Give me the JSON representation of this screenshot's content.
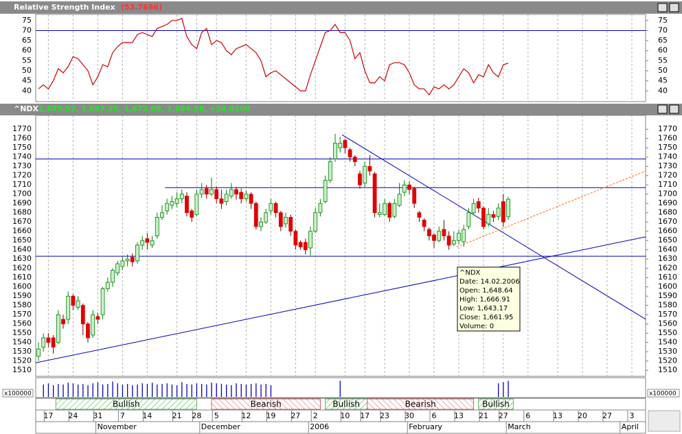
{
  "rsi_panel": {
    "title": "Relative Strength Index",
    "value_label": "(53.7686)"
  },
  "main_panel": {
    "title": "^NDX",
    "quote": "1,675.52, 1,697.25, 1,672.08, 1,694.58, +24.0100"
  },
  "volume_unit": "x100000",
  "tooltip": [
    "^NDX",
    "Date: 14.02.2006",
    "Open: 1,648.64",
    "High: 1,666.91",
    "Low: 1,643.17",
    "Close: 1,661.95",
    "Volume: 0"
  ],
  "chart_data": [
    {
      "type": "line",
      "name": "rsi",
      "color": "#d00000",
      "ylim": [
        35,
        78
      ],
      "yticks": [
        40,
        45,
        50,
        55,
        60,
        65,
        70,
        75
      ],
      "level": 70,
      "level_color": "#0000c0",
      "values": [
        41,
        43,
        41,
        45,
        51,
        49,
        52,
        57,
        56,
        53,
        50,
        43,
        47,
        53,
        52,
        59,
        62,
        64,
        64,
        64,
        68,
        69,
        68,
        67,
        71,
        72,
        73,
        75,
        75,
        76,
        67,
        63,
        61,
        69,
        71,
        63,
        65,
        64,
        60,
        58,
        61,
        62,
        63,
        61,
        59,
        55,
        47,
        49,
        50,
        48,
        46,
        44,
        42,
        40,
        40,
        48,
        55,
        62,
        69,
        70,
        73,
        69,
        69,
        65,
        56,
        59,
        50,
        44,
        44,
        47,
        45,
        53,
        54,
        54,
        53,
        49,
        43,
        41,
        41,
        38,
        42,
        41,
        43,
        41,
        43,
        47,
        51,
        49,
        44,
        48,
        47,
        53,
        49,
        47,
        53,
        53.7686,
        null,
        null,
        null,
        null,
        null,
        null,
        null,
        null,
        null,
        null,
        null,
        null,
        null,
        null,
        null,
        null,
        null,
        null,
        null,
        null,
        null,
        null,
        null,
        null,
        null,
        null,
        null
      ]
    },
    {
      "type": "candlestick",
      "name": "price",
      "up_color": "#c8f0c8",
      "up_edge": "#008000",
      "down_color": "#e00000",
      "ylim": [
        1503.5,
        1785
      ],
      "yticks": [
        1510,
        1520,
        1530,
        1540,
        1550,
        1560,
        1570,
        1580,
        1590,
        1600,
        1610,
        1620,
        1630,
        1640,
        1650,
        1660,
        1670,
        1680,
        1690,
        1700,
        1710,
        1720,
        1730,
        1740,
        1750,
        1760,
        1770
      ],
      "candles": [
        [
          1525,
          1540,
          1520,
          1533
        ],
        [
          1535,
          1550,
          1530,
          1545
        ],
        [
          1545,
          1550,
          1535,
          1540
        ],
        [
          1545,
          1548,
          1528,
          1535
        ],
        [
          1540,
          1575,
          1538,
          1570
        ],
        [
          1565,
          1570,
          1555,
          1560
        ],
        [
          1565,
          1595,
          1560,
          1590
        ],
        [
          1590,
          1592,
          1575,
          1580
        ],
        [
          1578,
          1590,
          1575,
          1585
        ],
        [
          1580,
          1582,
          1548,
          1560
        ],
        [
          1560,
          1562,
          1540,
          1545
        ],
        [
          1548,
          1575,
          1545,
          1570
        ],
        [
          1568,
          1572,
          1560,
          1565
        ],
        [
          1570,
          1600,
          1565,
          1598
        ],
        [
          1598,
          1610,
          1595,
          1605
        ],
        [
          1605,
          1620,
          1600,
          1618
        ],
        [
          1615,
          1628,
          1612,
          1625
        ],
        [
          1622,
          1632,
          1618,
          1628
        ],
        [
          1628,
          1635,
          1622,
          1630
        ],
        [
          1632,
          1636,
          1622,
          1627
        ],
        [
          1628,
          1648,
          1625,
          1645
        ],
        [
          1645,
          1655,
          1640,
          1650
        ],
        [
          1652,
          1658,
          1640,
          1648
        ],
        [
          1645,
          1655,
          1642,
          1650
        ],
        [
          1655,
          1680,
          1652,
          1675
        ],
        [
          1675,
          1688,
          1672,
          1680
        ],
        [
          1682,
          1695,
          1678,
          1690
        ],
        [
          1688,
          1698,
          1684,
          1692
        ],
        [
          1690,
          1702,
          1686,
          1695
        ],
        [
          1695,
          1705,
          1690,
          1700
        ],
        [
          1698,
          1702,
          1676,
          1680
        ],
        [
          1682,
          1684,
          1670,
          1675
        ],
        [
          1678,
          1705,
          1676,
          1700
        ],
        [
          1700,
          1712,
          1696,
          1705
        ],
        [
          1706,
          1710,
          1695,
          1700
        ],
        [
          1700,
          1718,
          1698,
          1705
        ],
        [
          1705,
          1708,
          1690,
          1695
        ],
        [
          1695,
          1705,
          1684,
          1690
        ],
        [
          1692,
          1705,
          1688,
          1700
        ],
        [
          1698,
          1712,
          1695,
          1705
        ],
        [
          1705,
          1708,
          1694,
          1700
        ],
        [
          1702,
          1706,
          1690,
          1695
        ],
        [
          1695,
          1704,
          1692,
          1700
        ],
        [
          1700,
          1702,
          1684,
          1690
        ],
        [
          1690,
          1692,
          1662,
          1665
        ],
        [
          1665,
          1675,
          1660,
          1670
        ],
        [
          1670,
          1684,
          1668,
          1680
        ],
        [
          1682,
          1695,
          1678,
          1690
        ],
        [
          1690,
          1692,
          1675,
          1680
        ],
        [
          1680,
          1682,
          1660,
          1665
        ],
        [
          1668,
          1680,
          1664,
          1675
        ],
        [
          1675,
          1678,
          1655,
          1660
        ],
        [
          1660,
          1662,
          1640,
          1645
        ],
        [
          1648,
          1650,
          1640,
          1643
        ],
        [
          1648,
          1652,
          1635,
          1640
        ],
        [
          1642,
          1665,
          1634,
          1660
        ],
        [
          1660,
          1685,
          1658,
          1680
        ],
        [
          1680,
          1695,
          1676,
          1690
        ],
        [
          1692,
          1720,
          1690,
          1715
        ],
        [
          1715,
          1740,
          1712,
          1735
        ],
        [
          1738,
          1765,
          1735,
          1755
        ],
        [
          1750,
          1762,
          1745,
          1755
        ],
        [
          1758,
          1760,
          1744,
          1750
        ],
        [
          1748,
          1750,
          1735,
          1740
        ],
        [
          1740,
          1742,
          1730,
          1735
        ],
        [
          1722,
          1725,
          1706,
          1710
        ],
        [
          1712,
          1735,
          1708,
          1730
        ],
        [
          1730,
          1742,
          1720,
          1725
        ],
        [
          1722,
          1724,
          1675,
          1680
        ],
        [
          1678,
          1690,
          1675,
          1680
        ],
        [
          1678,
          1695,
          1676,
          1690
        ],
        [
          1690,
          1692,
          1670,
          1675
        ],
        [
          1676,
          1695,
          1674,
          1690
        ],
        [
          1688,
          1712,
          1686,
          1700
        ],
        [
          1702,
          1715,
          1698,
          1710
        ],
        [
          1710,
          1714,
          1700,
          1705
        ],
        [
          1706,
          1708,
          1685,
          1690
        ],
        [
          1680,
          1682,
          1670,
          1675
        ],
        [
          1672,
          1674,
          1660,
          1665
        ],
        [
          1662,
          1664,
          1650,
          1655
        ],
        [
          1656,
          1658,
          1642,
          1650
        ],
        [
          1650,
          1665,
          1648,
          1660
        ],
        [
          1662,
          1672,
          1650,
          1655
        ],
        [
          1655,
          1660,
          1640,
          1645
        ],
        [
          1646,
          1660,
          1644,
          1650
        ],
        [
          1650,
          1662,
          1646,
          1658
        ],
        [
          1648.64,
          1666.91,
          1643.17,
          1661.95
        ],
        [
          1665,
          1685,
          1662,
          1680
        ],
        [
          1680,
          1695,
          1678,
          1690
        ],
        [
          1692,
          1696,
          1680,
          1685
        ],
        [
          1685,
          1687,
          1662,
          1665
        ],
        [
          1668,
          1685,
          1665,
          1678
        ],
        [
          1678,
          1682,
          1670,
          1675
        ],
        [
          1676,
          1690,
          1672,
          1685
        ],
        [
          1692,
          1700,
          1665,
          1670
        ],
        [
          1675.52,
          1697.25,
          1672.08,
          1694.58
        ],
        null,
        null,
        null,
        null,
        null,
        null,
        null,
        null,
        null,
        null,
        null,
        null,
        null,
        null,
        null,
        null,
        null,
        null,
        null,
        null,
        null,
        null,
        null,
        null,
        null,
        null,
        null
      ],
      "lines": [
        {
          "color": "#0000c0",
          "x": [
            -0.6,
            122.8
          ],
          "y": [
            1738,
            1738
          ]
        },
        {
          "color": "#0000c0",
          "x": [
            25.6,
            122.8
          ],
          "y": [
            1707,
            1707
          ]
        },
        {
          "color": "#0000c0",
          "x": [
            -0.6,
            122.8
          ],
          "y": [
            1633,
            1633
          ]
        },
        {
          "color": "#0000c0",
          "x": [
            -0.6,
            122.8
          ],
          "y": [
            1518,
            1654
          ]
        },
        {
          "color": "#0000c0",
          "x": [
            61.4,
            122.8
          ],
          "y": [
            1764,
            1565
          ]
        },
        {
          "color": "#ff6600",
          "dashed": true,
          "x": [
            84.6,
            122.8
          ],
          "y": [
            1643,
            1725
          ]
        }
      ]
    },
    {
      "type": "bar",
      "name": "volume",
      "color": "#0000c0",
      "ylim": [
        0,
        30
      ],
      "values": [
        0,
        20,
        22,
        19,
        21,
        20,
        23,
        22,
        20,
        21,
        19,
        22,
        24,
        20,
        21,
        25,
        22,
        20,
        21,
        19,
        20,
        22,
        21,
        23,
        20,
        21,
        22,
        20,
        19,
        24,
        21,
        20,
        22,
        21,
        20,
        23,
        22,
        21,
        20,
        19,
        22,
        21,
        20,
        21,
        22,
        20,
        21,
        19,
        0,
        0,
        0,
        0,
        0,
        0,
        0,
        0,
        0,
        0,
        0,
        0,
        0,
        26,
        0,
        0,
        0,
        0,
        0,
        0,
        0,
        0,
        0,
        0,
        0,
        0,
        0,
        0,
        0,
        0,
        0,
        0,
        0,
        0,
        0,
        0,
        0,
        0,
        0,
        0,
        0,
        0,
        0,
        0,
        0,
        22,
        24,
        26,
        null,
        null,
        null,
        null,
        null,
        null,
        null,
        null,
        null,
        null,
        null,
        null,
        null,
        null,
        null,
        null,
        null,
        null,
        null,
        null,
        null,
        null,
        null,
        null,
        null,
        null,
        null
      ]
    },
    {
      "type": "signals",
      "bull_color": "#008000",
      "bear_color": "#c00000",
      "bands": [
        {
          "label": "Bullish",
          "start": 3.5,
          "end": 32
        },
        {
          "label": "Bearish",
          "start": 35,
          "end": 57
        },
        {
          "label": "Bullish",
          "start": 58,
          "end": 66.5
        },
        {
          "label": "Bearish",
          "start": 66.5,
          "end": 88
        },
        {
          "label": "Bullish",
          "start": 89,
          "end": 96
        }
      ]
    },
    {
      "type": "dates",
      "categories": [
        null,
        null,
        "17",
        null,
        null,
        null,
        null,
        "24",
        null,
        null,
        null,
        null,
        "31",
        null,
        null,
        null,
        null,
        "7",
        null,
        null,
        null,
        null,
        "14",
        null,
        null,
        null,
        null,
        null,
        "21",
        null,
        null,
        null,
        "28",
        null,
        null,
        null,
        "5",
        null,
        null,
        null,
        null,
        null,
        "12",
        null,
        null,
        null,
        null,
        "19",
        null,
        null,
        null,
        null,
        "27",
        null,
        null,
        null,
        "2",
        null,
        null,
        null,
        null,
        null,
        "10",
        null,
        null,
        null,
        "17",
        null,
        null,
        null,
        "23",
        null,
        null,
        null,
        null,
        "30",
        null,
        null,
        null,
        null,
        "6",
        null,
        null,
        null,
        null,
        "13",
        null,
        null,
        null,
        null,
        "21",
        null,
        null,
        null,
        "27",
        null,
        null,
        null,
        null,
        "6",
        null,
        null,
        null,
        null,
        null,
        "13",
        null,
        null,
        null,
        null,
        "20",
        null,
        null,
        null,
        null,
        "27",
        null,
        null,
        null,
        null,
        "3",
        null,
        null
      ],
      "months": [
        null,
        null,
        null,
        null,
        null,
        null,
        null,
        null,
        null,
        null,
        null,
        null,
        null,
        "November",
        null,
        null,
        null,
        null,
        null,
        null,
        null,
        null,
        null,
        null,
        null,
        null,
        null,
        null,
        null,
        null,
        null,
        null,
        null,
        null,
        "December",
        null,
        null,
        null,
        null,
        null,
        null,
        null,
        null,
        null,
        null,
        null,
        null,
        null,
        null,
        null,
        null,
        null,
        null,
        null,
        null,
        null,
        "2006",
        null,
        null,
        null,
        null,
        null,
        null,
        null,
        null,
        null,
        null,
        null,
        null,
        null,
        null,
        null,
        null,
        null,
        null,
        null,
        "February",
        null,
        null,
        null,
        null,
        null,
        null,
        null,
        null,
        null,
        null,
        null,
        null,
        null,
        null,
        null,
        null,
        null,
        null,
        null,
        "March",
        null,
        null,
        null,
        null,
        null,
        null,
        null,
        null,
        null,
        null,
        null,
        null,
        null,
        null,
        null,
        null,
        null,
        null,
        null,
        null,
        null,
        null,
        "April",
        null,
        null,
        null,
        null
      ]
    }
  ]
}
